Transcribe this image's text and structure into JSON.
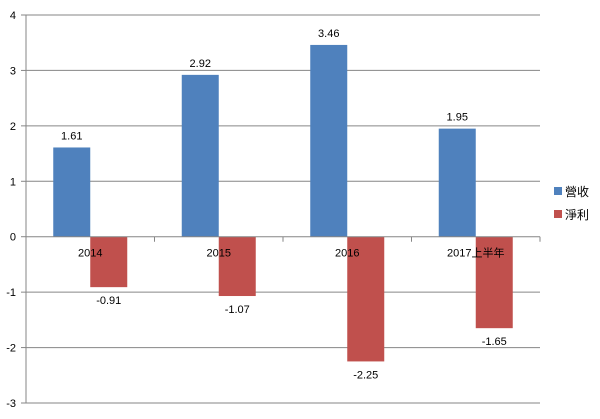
{
  "chart_data": {
    "type": "bar",
    "title": "",
    "xlabel": "",
    "ylabel": "",
    "categories": [
      "2014",
      "2015",
      "2016",
      "2017上半年"
    ],
    "series": [
      {
        "name": "營收",
        "color": "#4F81BD",
        "values": [
          1.61,
          2.92,
          3.46,
          1.95
        ],
        "labels": [
          "1.61",
          "2.92",
          "3.46",
          "1.95"
        ]
      },
      {
        "name": "淨利",
        "color": "#C0504D",
        "values": [
          -0.91,
          -1.07,
          -2.25,
          -1.65
        ],
        "labels": [
          "-0.91",
          "-1.07",
          "-2.25",
          "-1.65"
        ]
      }
    ],
    "ylim": [
      -3,
      4
    ],
    "yticks": [
      4,
      3,
      2,
      1,
      0,
      -1,
      -2,
      -3
    ],
    "grid": true,
    "legend": "right"
  }
}
